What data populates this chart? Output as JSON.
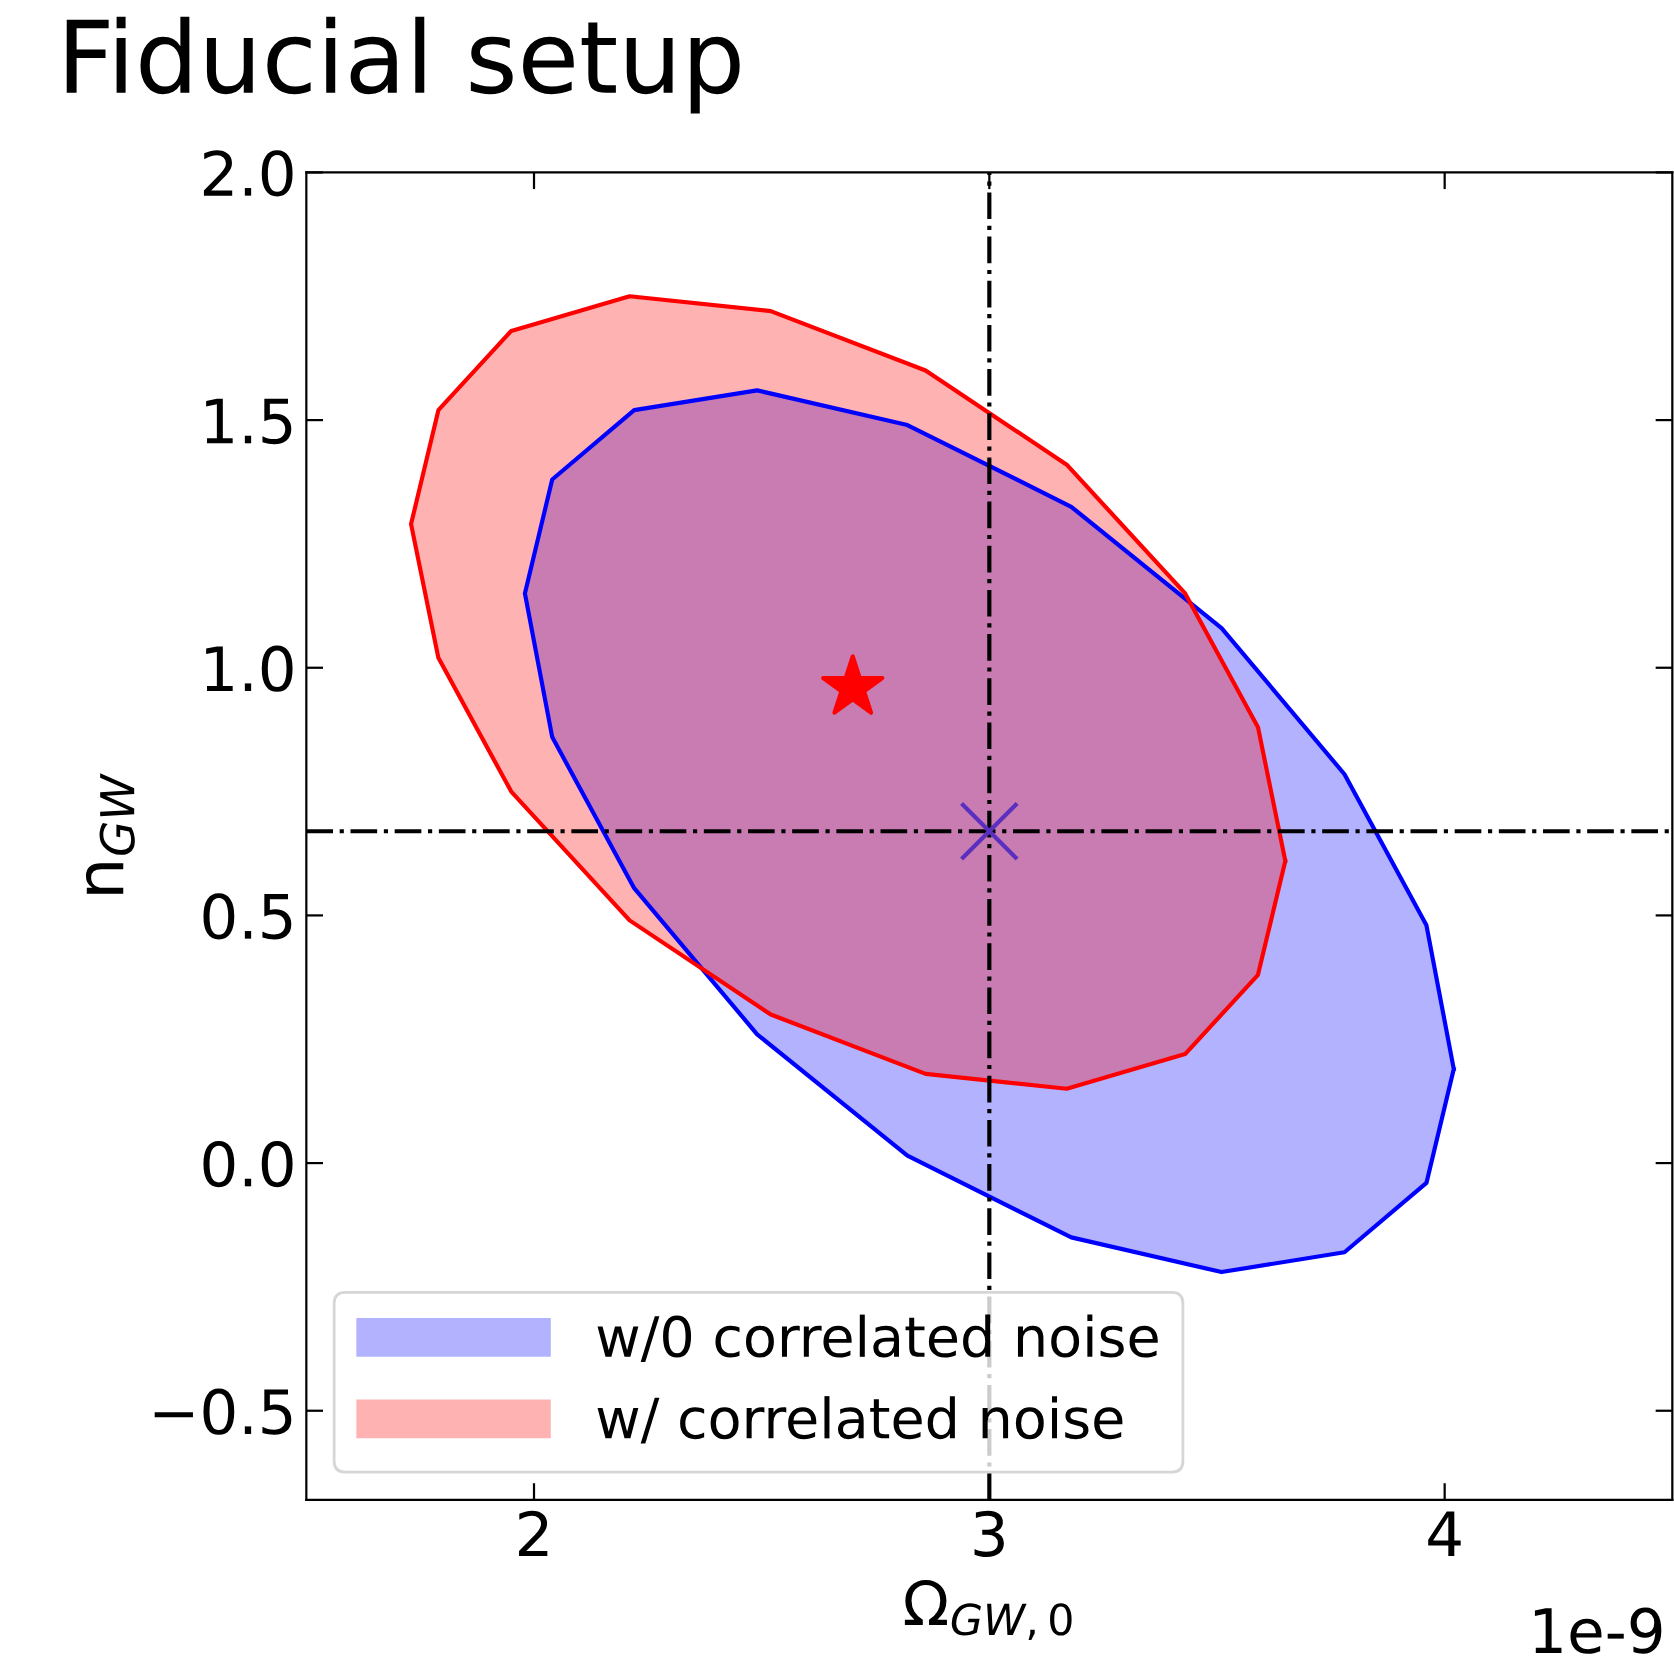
{
  "chart_data": {
    "type": "area",
    "title": "Fiducial setup",
    "xlabel": "Ω$_{GW,0}$",
    "ylabel": "n$_{GW}$",
    "xlim": [
      1.5,
      4.5
    ],
    "ylim": [
      -0.68,
      2.0
    ],
    "xticks": [
      2,
      3,
      4
    ],
    "yticks": [
      {
        "value": -0.5,
        "label": "−0.5"
      },
      {
        "value": 0,
        "label": "0.0"
      },
      0.5,
      {
        "value": 1,
        "label": "1.0"
      },
      1.5,
      {
        "value": 2,
        "label": "2.0"
      }
    ],
    "grid": false,
    "legend": "bottom left",
    "annotations": [
      "1e-9"
    ],
    "ref_lines": [
      {
        "axis": "x",
        "value": 3.0,
        "color": "#000000",
        "line_style": "dashdot"
      },
      {
        "axis": "y",
        "value": 0.67,
        "color": "#000000",
        "line_style": "dashdot"
      }
    ],
    "series": [
      {
        "name": "w/0 correlated noise",
        "color": "#0000ff",
        "x": [
          4.02,
          3.96,
          3.78,
          3.51,
          3.18,
          2.82,
          2.49,
          2.22,
          2.04,
          1.98,
          2.04,
          2.22,
          2.49,
          2.82,
          3.18,
          3.51,
          3.78,
          3.96,
          4.02
        ],
        "values": [
          0.19,
          0.48,
          0.785,
          1.08,
          1.325,
          1.49,
          1.56,
          1.52,
          1.38,
          1.15,
          0.86,
          0.555,
          0.26,
          0.015,
          -0.15,
          -0.22,
          -0.18,
          -0.04,
          0.19
        ]
      },
      {
        "name": "w/ correlated noise",
        "color": "#ff0000",
        "x": [
          3.65,
          3.59,
          3.43,
          3.17,
          2.86,
          2.52,
          2.21,
          1.95,
          1.79,
          1.73,
          1.79,
          1.95,
          2.21,
          2.52,
          2.86,
          3.17,
          3.43,
          3.59,
          3.65
        ],
        "values": [
          0.61,
          0.88,
          1.15,
          1.41,
          1.6,
          1.72,
          1.75,
          1.68,
          1.52,
          1.29,
          1.02,
          0.75,
          0.49,
          0.3,
          0.18,
          0.15,
          0.22,
          0.38,
          0.61
        ]
      },
      {
        "type": "scatter",
        "marker": "star",
        "color": "#ff0000",
        "x": [
          2.7
        ],
        "values": [
          0.96
        ]
      },
      {
        "type": "scatter",
        "marker": "cross",
        "color": "#5a2fc0",
        "x": [
          3.0
        ],
        "values": [
          0.67
        ]
      }
    ]
  }
}
